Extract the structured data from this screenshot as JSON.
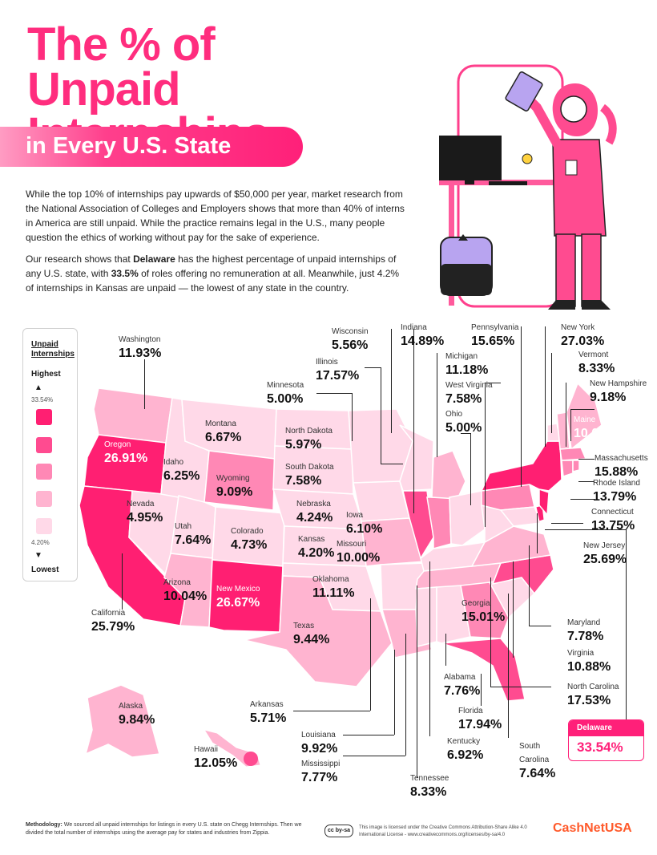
{
  "title": {
    "line1": "The % of Unpaid",
    "line2": "Internships",
    "banner": "in Every U.S. State"
  },
  "intro": {
    "p1": "While the top 10% of internships pay upwards of $50,000 per year, market research from the National Association of Colleges and Employers shows that more than 40% of interns in America are still unpaid. While the practice remains legal in the U.S., many people question the ethics of working without pay for the sake of experience.",
    "p2_a": "Our research shows that ",
    "p2_state": "Delaware",
    "p2_b": " has the highest percentage of unpaid internships of any U.S. state, with ",
    "p2_pct": "33.5%",
    "p2_c": " of roles offering no remuneration at all. Meanwhile, just 4.2% of internships in Kansas are unpaid — the lowest of any state in the country."
  },
  "legend": {
    "title_1": "Unpaid",
    "title_2": "Internships",
    "highest": "Highest",
    "max": "33.54%",
    "min": "4.20%",
    "lowest": "Lowest",
    "colors": [
      "#ff1f72",
      "#ff4b90",
      "#ff88b5",
      "#ffb4d0",
      "#ffd9e8"
    ]
  },
  "states": {
    "washington": {
      "name": "Washington",
      "value": "11.93%"
    },
    "oregon": {
      "name": "Oregon",
      "value": "26.91%"
    },
    "idaho": {
      "name": "Idaho",
      "value": "6.25%"
    },
    "montana": {
      "name": "Montana",
      "value": "6.67%"
    },
    "wyoming": {
      "name": "Wyoming",
      "value": "9.09%"
    },
    "nevada": {
      "name": "Nevada",
      "value": "4.95%"
    },
    "utah": {
      "name": "Utah",
      "value": "7.64%"
    },
    "colorado": {
      "name": "Colorado",
      "value": "4.73%"
    },
    "california": {
      "name": "California",
      "value": "25.79%"
    },
    "arizona": {
      "name": "Arizona",
      "value": "10.04%"
    },
    "new_mexico": {
      "name": "New Mexico",
      "value": "26.67%"
    },
    "north_dakota": {
      "name": "North Dakota",
      "value": "5.97%"
    },
    "south_dakota": {
      "name": "South Dakota",
      "value": "7.58%"
    },
    "nebraska": {
      "name": "Nebraska",
      "value": "4.24%"
    },
    "kansas": {
      "name": "Kansas",
      "value": "4.20%"
    },
    "oklahoma": {
      "name": "Oklahoma",
      "value": "11.11%"
    },
    "texas": {
      "name": "Texas",
      "value": "9.44%"
    },
    "minnesota": {
      "name": "Minnesota",
      "value": "5.00%"
    },
    "iowa": {
      "name": "Iowa",
      "value": "6.10%"
    },
    "missouri": {
      "name": "Missouri",
      "value": "10.00%"
    },
    "wisconsin": {
      "name": "Wisconsin",
      "value": "5.56%"
    },
    "illinois": {
      "name": "Illinois",
      "value": "17.57%"
    },
    "indiana": {
      "name": "Indiana",
      "value": "14.89%"
    },
    "michigan": {
      "name": "Michigan",
      "value": "11.18%"
    },
    "ohio": {
      "name": "Ohio",
      "value": "5.00%"
    },
    "west_virginia": {
      "name": "West Virginia",
      "value": "7.58%"
    },
    "pennsylvania": {
      "name": "Pennsylvania",
      "value": "15.65%"
    },
    "new_york": {
      "name": "New York",
      "value": "27.03%"
    },
    "vermont": {
      "name": "Vermont",
      "value": "8.33%"
    },
    "new_hampshire": {
      "name": "New Hampshire",
      "value": "9.18%"
    },
    "maine": {
      "name": "Maine",
      "value": "10.00%"
    },
    "massachusetts": {
      "name": "Massachusetts",
      "value": "15.88%"
    },
    "rhode_island": {
      "name": "Rhode Island",
      "value": "13.79%"
    },
    "connecticut": {
      "name": "Connecticut",
      "value": "13.75%"
    },
    "new_jersey": {
      "name": "New Jersey",
      "value": "25.69%"
    },
    "maryland": {
      "name": "Maryland",
      "value": "7.78%"
    },
    "virginia": {
      "name": "Virginia",
      "value": "10.88%"
    },
    "north_carolina": {
      "name": "North Carolina",
      "value": "17.53%"
    },
    "south_carolina_1": {
      "name": "South",
      "value": ""
    },
    "south_carolina": {
      "name": "Carolina",
      "value": "7.64%"
    },
    "georgia": {
      "name": "Georgia",
      "value": "15.01%"
    },
    "florida": {
      "name": "Florida",
      "value": "17.94%"
    },
    "alabama": {
      "name": "Alabama",
      "value": "7.76%"
    },
    "kentucky": {
      "name": "Kentucky",
      "value": "6.92%"
    },
    "tennessee": {
      "name": "Tennessee",
      "value": "8.33%"
    },
    "mississippi": {
      "name": "Mississippi",
      "value": "7.77%"
    },
    "louisiana": {
      "name": "Louisiana",
      "value": "9.92%"
    },
    "arkansas": {
      "name": "Arkansas",
      "value": "5.71%"
    },
    "alaska": {
      "name": "Alaska",
      "value": "9.84%"
    },
    "hawaii": {
      "name": "Hawaii",
      "value": "12.05%"
    },
    "delaware": {
      "name": "Delaware",
      "value": "33.54%"
    }
  },
  "footer": {
    "method_label": "Methodology:",
    "method_text": " We sourced all unpaid internships for listings in every U.S. state on Chegg Internships. Then we divided the total number of internships using the average pay for states and industries from Zippia.",
    "cc_badge": "cc by-sa",
    "license": "This image is licensed under the Creative Commons Attribution-Share Alike 4.0 International License - www.creativecommons.org/licenses/by-sa/4.0",
    "brand": "CashNetUSA"
  }
}
